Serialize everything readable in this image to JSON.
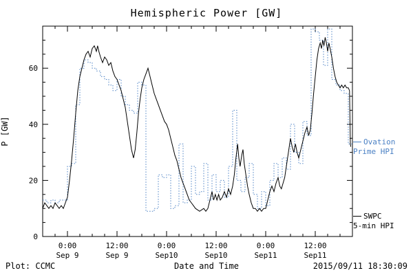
{
  "colors": {
    "ovation_blue": "#4a80c4",
    "swpc_black": "#000000",
    "background": "#ffffff"
  },
  "legend": {
    "ovation_line1": "Ovation",
    "ovation_line2": "Prime HPI",
    "swpc_line1": "SWPC",
    "swpc_line2": "5-min HPI"
  },
  "footer": {
    "left": "Plot: CCMC",
    "right": "2015/09/11 18:30:09"
  },
  "chart_data": {
    "type": "line",
    "title": "Hemispheric Power [GW]",
    "xlabel": "Date and Time",
    "ylabel": "P [GW]",
    "ylim": [
      0,
      75
    ],
    "xlim_hours": [
      -6,
      69
    ],
    "yticks": [
      0,
      20,
      40,
      60
    ],
    "xticks": [
      {
        "hour": 0,
        "time": "0:00",
        "date": "Sep 9"
      },
      {
        "hour": 12,
        "time": "12:00",
        "date": "Sep 9"
      },
      {
        "hour": 24,
        "time": "0:00",
        "date": "Sep10"
      },
      {
        "hour": 36,
        "time": "12:00",
        "date": "Sep10"
      },
      {
        "hour": 48,
        "time": "0:00",
        "date": "Sep11"
      },
      {
        "hour": 60,
        "time": "12:00",
        "date": "Sep11"
      }
    ],
    "grid": false,
    "legend_position": "right-outside",
    "series": [
      {
        "name": "Ovation Prime HPI",
        "color": "#4a80c4",
        "style": "dotted-step",
        "start_hour": -6,
        "step_hours": 1,
        "values": [
          13,
          12,
          13,
          12,
          13,
          13,
          25,
          26,
          47,
          60,
          63,
          62,
          60,
          59,
          57,
          56,
          54,
          52,
          56,
          50,
          47,
          45,
          44,
          55,
          54,
          9,
          9,
          10,
          22,
          21,
          22,
          10,
          11,
          33,
          12,
          13,
          25,
          15,
          16,
          26,
          13,
          22,
          16,
          20,
          14,
          25,
          45,
          20,
          16,
          21,
          26,
          15,
          10,
          16,
          11,
          20,
          26,
          21,
          28,
          24,
          40,
          30,
          26,
          41,
          36,
          74,
          73,
          70,
          61,
          74,
          56,
          54,
          52,
          51,
          33
        ]
      },
      {
        "name": "SWPC 5-min HPI",
        "color": "#000000",
        "style": "solid",
        "points": [
          [
            -6,
            10
          ],
          [
            -5.5,
            12
          ],
          [
            -5,
            11
          ],
          [
            -4.5,
            10
          ],
          [
            -4,
            11
          ],
          [
            -3.5,
            10
          ],
          [
            -3,
            12
          ],
          [
            -2.5,
            11
          ],
          [
            -2,
            10
          ],
          [
            -1.5,
            11
          ],
          [
            -1,
            10
          ],
          [
            -0.5,
            12
          ],
          [
            0,
            14
          ],
          [
            0.5,
            20
          ],
          [
            1,
            27
          ],
          [
            1.5,
            35
          ],
          [
            2,
            44
          ],
          [
            2.5,
            52
          ],
          [
            3,
            57
          ],
          [
            3.5,
            60
          ],
          [
            4,
            63
          ],
          [
            4.5,
            65
          ],
          [
            5,
            66
          ],
          [
            5.5,
            64
          ],
          [
            6,
            67
          ],
          [
            6.5,
            68
          ],
          [
            7,
            66
          ],
          [
            7.3,
            68
          ],
          [
            7.6,
            66
          ],
          [
            8,
            64
          ],
          [
            8.5,
            62
          ],
          [
            9,
            64
          ],
          [
            9.5,
            63
          ],
          [
            10,
            61
          ],
          [
            10.5,
            62
          ],
          [
            11,
            59
          ],
          [
            11.5,
            57
          ],
          [
            12,
            56
          ],
          [
            12.5,
            54
          ],
          [
            13,
            52
          ],
          [
            13.5,
            49
          ],
          [
            14,
            46
          ],
          [
            14.5,
            41
          ],
          [
            15,
            36
          ],
          [
            15.5,
            31
          ],
          [
            16,
            28
          ],
          [
            16.4,
            31
          ],
          [
            16.8,
            37
          ],
          [
            17.2,
            44
          ],
          [
            17.6,
            49
          ],
          [
            18,
            53
          ],
          [
            18.5,
            56
          ],
          [
            19,
            58
          ],
          [
            19.5,
            60
          ],
          [
            20,
            57
          ],
          [
            20.5,
            54
          ],
          [
            21,
            51
          ],
          [
            21.5,
            49
          ],
          [
            22,
            47
          ],
          [
            22.5,
            45
          ],
          [
            23,
            43
          ],
          [
            23.5,
            41
          ],
          [
            24,
            40
          ],
          [
            24.5,
            38
          ],
          [
            25,
            35
          ],
          [
            25.5,
            32
          ],
          [
            26,
            29
          ],
          [
            26.5,
            27
          ],
          [
            27,
            24
          ],
          [
            27.5,
            21
          ],
          [
            28,
            19
          ],
          [
            28.5,
            17
          ],
          [
            29,
            15
          ],
          [
            29.5,
            13
          ],
          [
            30,
            12
          ],
          [
            30.5,
            11
          ],
          [
            31,
            10
          ],
          [
            32,
            9
          ],
          [
            33,
            10
          ],
          [
            33.5,
            9
          ],
          [
            34,
            10
          ],
          [
            34.5,
            13
          ],
          [
            35,
            16
          ],
          [
            35.4,
            13
          ],
          [
            35.8,
            15
          ],
          [
            36.2,
            13
          ],
          [
            36.6,
            15
          ],
          [
            37,
            13
          ],
          [
            37.5,
            14
          ],
          [
            38,
            16
          ],
          [
            38.5,
            14
          ],
          [
            39,
            17
          ],
          [
            39.5,
            15
          ],
          [
            40,
            18
          ],
          [
            40.4,
            22
          ],
          [
            40.8,
            28
          ],
          [
            41.2,
            33
          ],
          [
            41.5,
            28
          ],
          [
            41.8,
            25
          ],
          [
            42.2,
            29
          ],
          [
            42.5,
            31
          ],
          [
            42.8,
            26
          ],
          [
            43.2,
            22
          ],
          [
            43.6,
            18
          ],
          [
            44,
            15
          ],
          [
            44.5,
            12
          ],
          [
            45,
            10
          ],
          [
            45.5,
            10
          ],
          [
            46,
            9
          ],
          [
            46.5,
            10
          ],
          [
            47,
            9
          ],
          [
            47.5,
            10
          ],
          [
            48,
            10
          ],
          [
            48.5,
            13
          ],
          [
            49,
            16
          ],
          [
            49.5,
            18
          ],
          [
            50,
            16
          ],
          [
            50.5,
            19
          ],
          [
            51,
            21
          ],
          [
            51.4,
            18
          ],
          [
            51.8,
            17
          ],
          [
            52.2,
            19
          ],
          [
            52.6,
            21
          ],
          [
            53,
            25
          ],
          [
            53.5,
            30
          ],
          [
            54,
            35
          ],
          [
            54.4,
            32
          ],
          [
            54.8,
            30
          ],
          [
            55.2,
            33
          ],
          [
            55.6,
            30
          ],
          [
            56,
            28
          ],
          [
            56.5,
            31
          ],
          [
            57,
            34
          ],
          [
            57.5,
            37
          ],
          [
            58,
            39
          ],
          [
            58.4,
            36
          ],
          [
            58.8,
            38
          ],
          [
            59.2,
            44
          ],
          [
            59.6,
            51
          ],
          [
            60,
            57
          ],
          [
            60.4,
            63
          ],
          [
            60.8,
            67
          ],
          [
            61.2,
            69
          ],
          [
            61.5,
            67
          ],
          [
            61.8,
            70
          ],
          [
            62.1,
            68
          ],
          [
            62.4,
            71
          ],
          [
            62.7,
            69
          ],
          [
            63,
            66
          ],
          [
            63.3,
            69
          ],
          [
            63.6,
            67
          ],
          [
            64,
            64
          ],
          [
            64.4,
            60
          ],
          [
            64.8,
            57
          ],
          [
            65.2,
            55
          ],
          [
            65.6,
            54
          ],
          [
            66,
            53
          ],
          [
            66.4,
            54
          ],
          [
            66.8,
            53
          ],
          [
            67.2,
            54
          ],
          [
            67.6,
            53
          ],
          [
            68,
            53
          ],
          [
            68.3,
            52
          ],
          [
            68.5,
            33
          ],
          [
            68.6,
            32
          ]
        ]
      }
    ]
  }
}
